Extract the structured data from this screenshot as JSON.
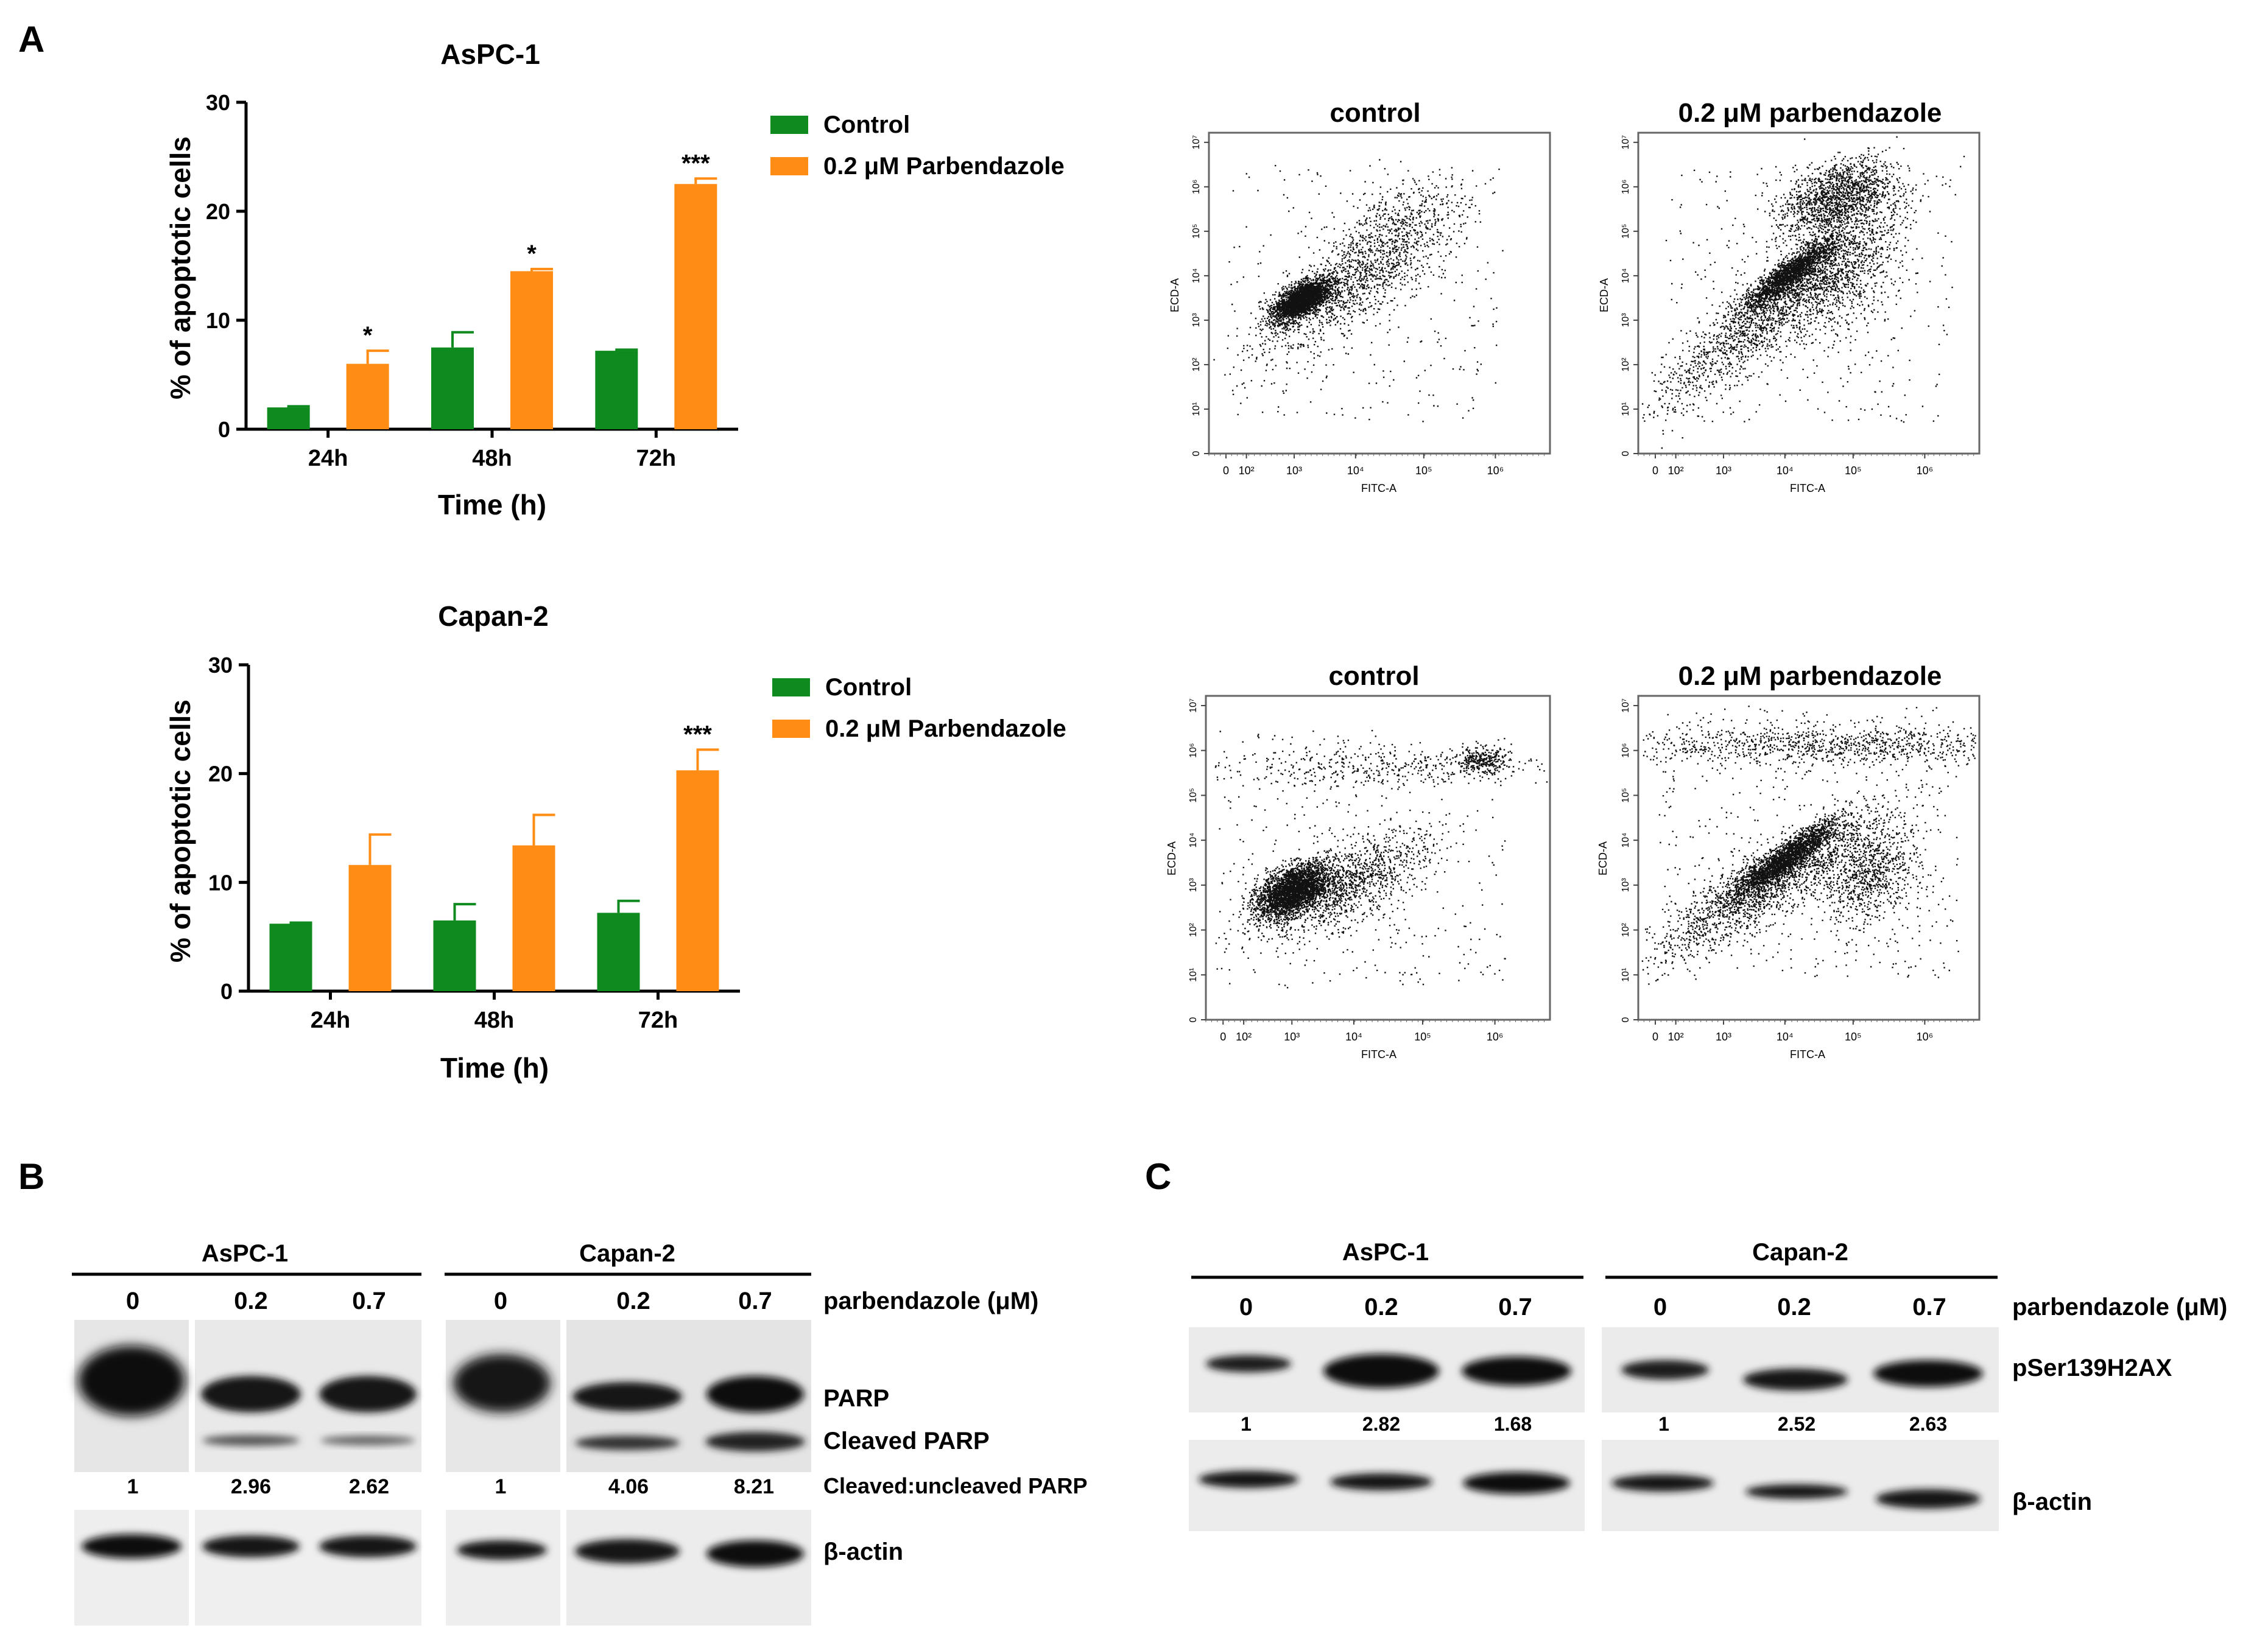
{
  "panels": {
    "a": "A",
    "b": "B",
    "c": "C"
  },
  "chart_data": [
    {
      "type": "bar",
      "title": "AsPC-1",
      "xlabel": "Time (h)",
      "ylabel": "% of apoptotic cells",
      "ylim": [
        0,
        30
      ],
      "yticks": [
        "0",
        "10",
        "20",
        "30"
      ],
      "categories": [
        "24h",
        "48h",
        "72h"
      ],
      "series": [
        {
          "name": "Control",
          "color": "#0f8a1e",
          "values": [
            2.0,
            7.5,
            7.2
          ],
          "errors": [
            0.1,
            1.4,
            0.1
          ]
        },
        {
          "name": "0.2 μM Parbendazole",
          "color": "#ff8c14",
          "values": [
            6.0,
            14.5,
            22.5
          ],
          "errors": [
            1.2,
            0.2,
            0.5
          ]
        }
      ],
      "significance": [
        "*",
        "*",
        "***"
      ],
      "legend": "right"
    },
    {
      "type": "bar",
      "title": "Capan-2",
      "xlabel": "Time (h)",
      "ylabel": "% of apoptotic cells",
      "ylim": [
        0,
        30
      ],
      "yticks": [
        "0",
        "10",
        "20",
        "30"
      ],
      "categories": [
        "24h",
        "48h",
        "72h"
      ],
      "series": [
        {
          "name": "Control",
          "color": "#0f8a1e",
          "values": [
            6.2,
            6.5,
            7.2
          ],
          "errors": [
            0.1,
            1.5,
            1.1
          ]
        },
        {
          "name": "0.2 μM Parbendazole",
          "color": "#ff8c14",
          "values": [
            11.6,
            13.4,
            20.3
          ],
          "errors": [
            2.8,
            2.8,
            1.9
          ]
        }
      ],
      "significance": [
        "",
        "",
        "***"
      ],
      "legend": "right"
    },
    {
      "type": "scatter",
      "title": "control",
      "xlabel": "FITC-A",
      "ylabel": "ECD-A",
      "xticks": [
        "0",
        "10²",
        "10³",
        "10⁴",
        "10⁵",
        "10⁶"
      ],
      "yticks": [
        "0",
        "10¹",
        "10²",
        "10³",
        "10⁴",
        "10⁵",
        "10⁶",
        "10⁷"
      ]
    },
    {
      "type": "scatter",
      "title": "0.2 μM parbendazole",
      "xlabel": "FITC-A",
      "ylabel": "ECD-A",
      "xticks": [
        "0",
        "10²",
        "10³",
        "10⁴",
        "10⁵",
        "10⁶"
      ],
      "yticks": [
        "0",
        "10¹",
        "10²",
        "10³",
        "10⁴",
        "10⁵",
        "10⁶",
        "10⁷"
      ]
    },
    {
      "type": "scatter",
      "title": "control",
      "xlabel": "FITC-A",
      "ylabel": "ECD-A",
      "xticks": [
        "0",
        "10²",
        "10³",
        "10⁴",
        "10⁵",
        "10⁶"
      ],
      "yticks": [
        "0",
        "10¹",
        "10²",
        "10³",
        "10⁴",
        "10⁵",
        "10⁶",
        "10⁷"
      ]
    },
    {
      "type": "scatter",
      "title": "0.2 μM parbendazole",
      "xlabel": "FITC-A",
      "ylabel": "ECD-A",
      "xticks": [
        "0",
        "10²",
        "10³",
        "10⁴",
        "10⁵",
        "10⁶"
      ],
      "yticks": [
        "0",
        "10¹",
        "10²",
        "10³",
        "10⁴",
        "10⁵",
        "10⁶",
        "10⁷"
      ]
    }
  ],
  "blot_b": {
    "groups": [
      "AsPC-1",
      "Capan-2"
    ],
    "doses": [
      "0",
      "0.2",
      "0.7",
      "0",
      "0.2",
      "0.7"
    ],
    "dose_label": "parbendazole (μM)",
    "row_labels": [
      "PARP",
      "Cleaved PARP",
      "Cleaved:uncleaved PARP",
      "β-actin"
    ],
    "ratios": [
      "1",
      "2.96",
      "2.62",
      "1",
      "4.06",
      "8.21"
    ]
  },
  "blot_c": {
    "groups": [
      "AsPC-1",
      "Capan-2"
    ],
    "doses": [
      "0",
      "0.2",
      "0.7",
      "0",
      "0.2",
      "0.7"
    ],
    "dose_label": "parbendazole (μM)",
    "row_labels": [
      "pSer139H2AX",
      "β-actin"
    ],
    "ratios": [
      "1",
      "2.82",
      "1.68",
      "1",
      "2.52",
      "2.63"
    ]
  }
}
